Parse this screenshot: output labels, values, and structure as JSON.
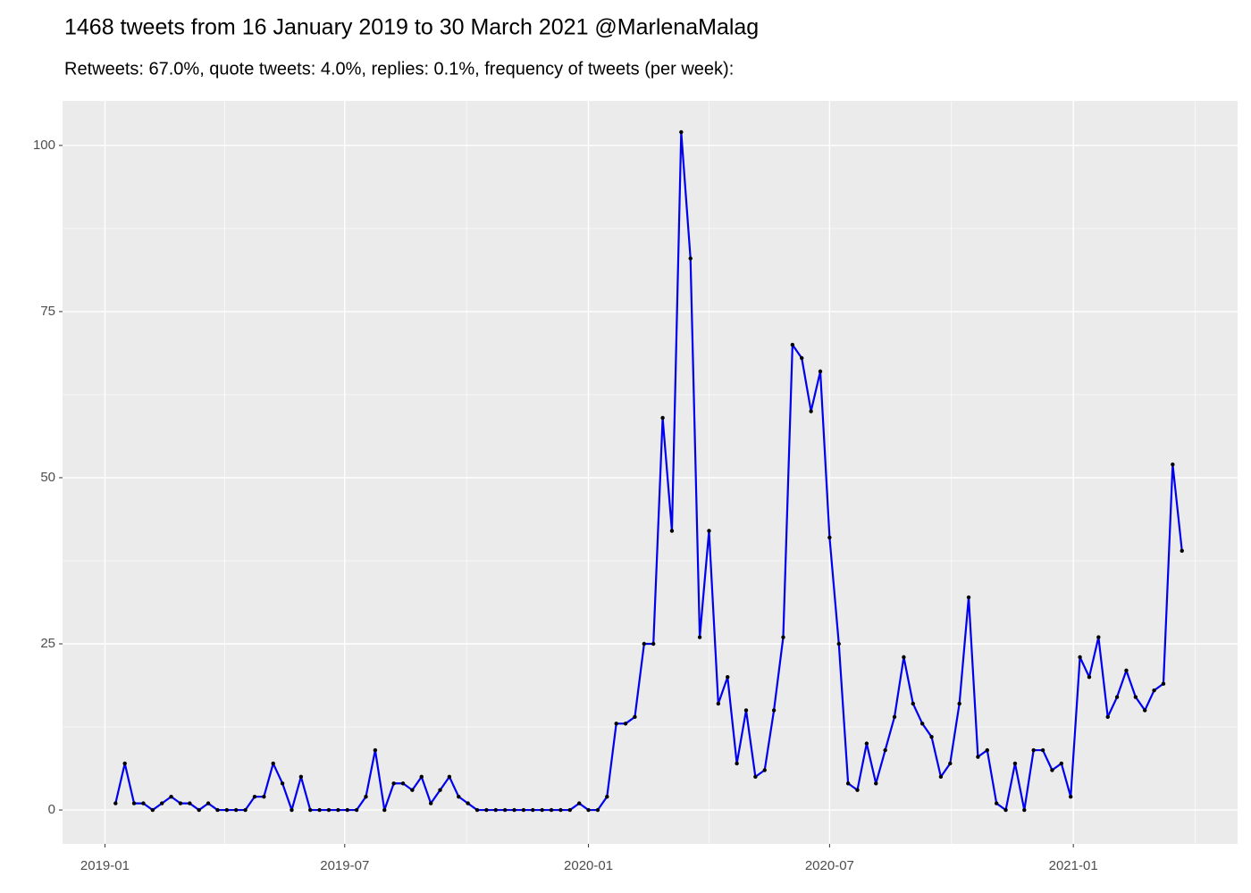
{
  "chart_data": {
    "type": "line",
    "title": "1468 tweets from 16 January 2019 to 30 March 2021 @MarlenaMalag",
    "subtitle": "Retweets: 67.0%, quote tweets: 4.0%, replies: 0.1%, frequency of tweets (per week):",
    "x": [
      "2019-01-09",
      "2019-01-16",
      "2019-01-23",
      "2019-01-30",
      "2019-02-06",
      "2019-02-13",
      "2019-02-20",
      "2019-02-27",
      "2019-03-06",
      "2019-03-13",
      "2019-03-20",
      "2019-03-27",
      "2019-04-03",
      "2019-04-10",
      "2019-04-17",
      "2019-04-24",
      "2019-05-01",
      "2019-05-08",
      "2019-05-15",
      "2019-05-22",
      "2019-05-29",
      "2019-06-05",
      "2019-06-12",
      "2019-06-19",
      "2019-06-26",
      "2019-07-03",
      "2019-07-10",
      "2019-07-17",
      "2019-07-24",
      "2019-07-31",
      "2019-08-07",
      "2019-08-14",
      "2019-08-21",
      "2019-08-28",
      "2019-09-04",
      "2019-09-11",
      "2019-09-18",
      "2019-09-25",
      "2019-10-02",
      "2019-10-09",
      "2019-10-16",
      "2019-10-23",
      "2019-10-30",
      "2019-11-06",
      "2019-11-13",
      "2019-11-20",
      "2019-11-27",
      "2019-12-04",
      "2019-12-11",
      "2019-12-18",
      "2019-12-25",
      "2020-01-01",
      "2020-01-08",
      "2020-01-15",
      "2020-01-22",
      "2020-01-29",
      "2020-02-05",
      "2020-02-12",
      "2020-02-19",
      "2020-02-26",
      "2020-03-04",
      "2020-03-11",
      "2020-03-18",
      "2020-03-25",
      "2020-04-01",
      "2020-04-08",
      "2020-04-15",
      "2020-04-22",
      "2020-04-29",
      "2020-05-06",
      "2020-05-13",
      "2020-05-20",
      "2020-05-27",
      "2020-06-03",
      "2020-06-10",
      "2020-06-17",
      "2020-06-24",
      "2020-07-01",
      "2020-07-08",
      "2020-07-15",
      "2020-07-22",
      "2020-07-29",
      "2020-08-05",
      "2020-08-12",
      "2020-08-19",
      "2020-08-26",
      "2020-09-02",
      "2020-09-09",
      "2020-09-16",
      "2020-09-23",
      "2020-09-30",
      "2020-10-07",
      "2020-10-14",
      "2020-10-21",
      "2020-10-28",
      "2020-11-04",
      "2020-11-11",
      "2020-11-18",
      "2020-11-25",
      "2020-12-02",
      "2020-12-09",
      "2020-12-16",
      "2020-12-23",
      "2020-12-30",
      "2021-01-06",
      "2021-01-13",
      "2021-01-20",
      "2021-01-27",
      "2021-02-03",
      "2021-02-10",
      "2021-02-17",
      "2021-02-24",
      "2021-03-03",
      "2021-03-10",
      "2021-03-17",
      "2021-03-24"
    ],
    "series": [
      {
        "color": "#0000ee",
        "marker_color": "#000000",
        "values": [
          1,
          7,
          1,
          1,
          0,
          1,
          2,
          1,
          1,
          0,
          1,
          0,
          0,
          0,
          0,
          2,
          2,
          7,
          4,
          0,
          5,
          0,
          0,
          0,
          0,
          0,
          0,
          2,
          9,
          0,
          4,
          4,
          3,
          5,
          1,
          3,
          5,
          2,
          1,
          0,
          0,
          0,
          0,
          0,
          0,
          0,
          0,
          0,
          0,
          0,
          1,
          0,
          0,
          2,
          13,
          13,
          14,
          25,
          25,
          59,
          42,
          102,
          83,
          26,
          42,
          16,
          20,
          7,
          15,
          5,
          6,
          15,
          26,
          70,
          68,
          60,
          66,
          41,
          25,
          4,
          3,
          10,
          4,
          9,
          14,
          23,
          16,
          13,
          11,
          5,
          7,
          16,
          32,
          8,
          9,
          1,
          0,
          7,
          0,
          9,
          9,
          6,
          7,
          2,
          23,
          20,
          26,
          14,
          17,
          21,
          17,
          15,
          18,
          19,
          52,
          39
        ]
      }
    ],
    "xlim": [
      "2018-11-30",
      "2021-05-05"
    ],
    "xticks": [
      {
        "value": "2019-01-01",
        "label": "2019-01"
      },
      {
        "value": "2019-07-01",
        "label": "2019-07"
      },
      {
        "value": "2020-01-01",
        "label": "2020-01"
      },
      {
        "value": "2020-07-01",
        "label": "2020-07"
      },
      {
        "value": "2021-01-01",
        "label": "2021-01"
      }
    ],
    "ylim": [
      -5.1,
      106.7
    ],
    "yticks": [
      0,
      25,
      50,
      75,
      100
    ],
    "grid": true
  }
}
